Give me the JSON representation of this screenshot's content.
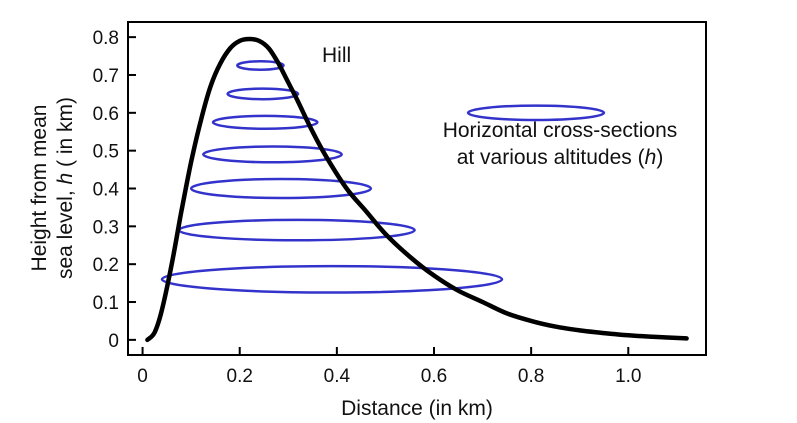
{
  "chart_data": {
    "type": "line",
    "xlabel": "Distance (in km)",
    "ylabel_line1": "Height from mean",
    "ylabel_line2_pre": "sea level, ",
    "ylabel_line2_var": "h",
    "ylabel_line2_post": " ( in km)",
    "xlim": [
      -0.03,
      1.16
    ],
    "ylim": [
      -0.04,
      0.84
    ],
    "xticks": [
      0,
      0.2,
      0.4,
      0.6,
      0.8,
      1.0
    ],
    "xtick_labels": [
      "0",
      "0.2",
      "0.4",
      "0.6",
      "0.8",
      "1.0"
    ],
    "yticks": [
      0,
      0.1,
      0.2,
      0.3,
      0.4,
      0.5,
      0.6,
      0.7,
      0.8
    ],
    "ytick_labels": [
      "0",
      "0.1",
      "0.2",
      "0.3",
      "0.4",
      "0.5",
      "0.6",
      "0.7",
      "0.8"
    ],
    "grid": false,
    "series": [
      {
        "name": "Hill",
        "color": "#000000",
        "x": [
          0.01,
          0.025,
          0.04,
          0.06,
          0.08,
          0.1,
          0.12,
          0.14,
          0.16,
          0.18,
          0.2,
          0.22,
          0.24,
          0.26,
          0.28,
          0.3,
          0.32,
          0.35,
          0.38,
          0.42,
          0.46,
          0.5,
          0.55,
          0.6,
          0.65,
          0.7,
          0.75,
          0.8,
          0.85,
          0.9,
          0.95,
          1.0,
          1.05,
          1.12
        ],
        "y": [
          0.0,
          0.02,
          0.08,
          0.2,
          0.34,
          0.47,
          0.58,
          0.67,
          0.73,
          0.77,
          0.79,
          0.795,
          0.79,
          0.77,
          0.73,
          0.68,
          0.63,
          0.55,
          0.48,
          0.4,
          0.34,
          0.28,
          0.22,
          0.17,
          0.13,
          0.1,
          0.07,
          0.05,
          0.035,
          0.025,
          0.018,
          0.012,
          0.008,
          0.004
        ]
      }
    ],
    "cross_sections": {
      "color": "#3333cc",
      "ellipses": [
        {
          "h": 0.16,
          "x_left": 0.04,
          "x_right": 0.74,
          "half_height": 0.035
        },
        {
          "h": 0.29,
          "x_left": 0.075,
          "x_right": 0.56,
          "half_height": 0.027
        },
        {
          "h": 0.4,
          "x_left": 0.1,
          "x_right": 0.47,
          "half_height": 0.025
        },
        {
          "h": 0.49,
          "x_left": 0.125,
          "x_right": 0.41,
          "half_height": 0.021
        },
        {
          "h": 0.575,
          "x_left": 0.145,
          "x_right": 0.36,
          "half_height": 0.017
        },
        {
          "h": 0.65,
          "x_left": 0.175,
          "x_right": 0.32,
          "half_height": 0.014
        },
        {
          "h": 0.725,
          "x_left": 0.195,
          "x_right": 0.29,
          "half_height": 0.011
        }
      ],
      "legend_ellipse": {
        "x_left": 0.67,
        "x_right": 0.95,
        "h": 0.6,
        "half_height": 0.019
      }
    },
    "annotations": {
      "hill_label": "Hill",
      "legend_line1": "Horizontal cross-sections",
      "legend_line2_pre": "at various altitudes (",
      "legend_line2_var": "h",
      "legend_line2_post": ")"
    }
  }
}
